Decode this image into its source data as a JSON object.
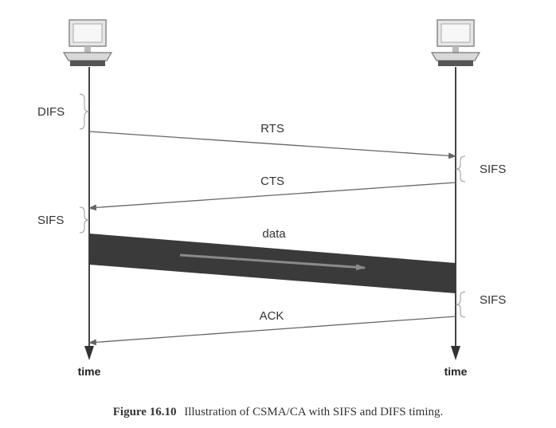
{
  "diagram": {
    "left_label_difs": "DIFS",
    "left_label_sifs": "SIFS",
    "right_label_sifs_1": "SIFS",
    "right_label_sifs_2": "SIFS",
    "msg_rts": "RTS",
    "msg_cts": "CTS",
    "msg_data": "data",
    "msg_ack": "ACK",
    "axis_left": "time",
    "axis_right": "time"
  },
  "caption": {
    "number": "Figure 16.10",
    "text": "Illustration of CSMA/CA with SIFS and DIFS timing."
  },
  "icons": {
    "left": "computer-icon",
    "right": "computer-icon"
  }
}
